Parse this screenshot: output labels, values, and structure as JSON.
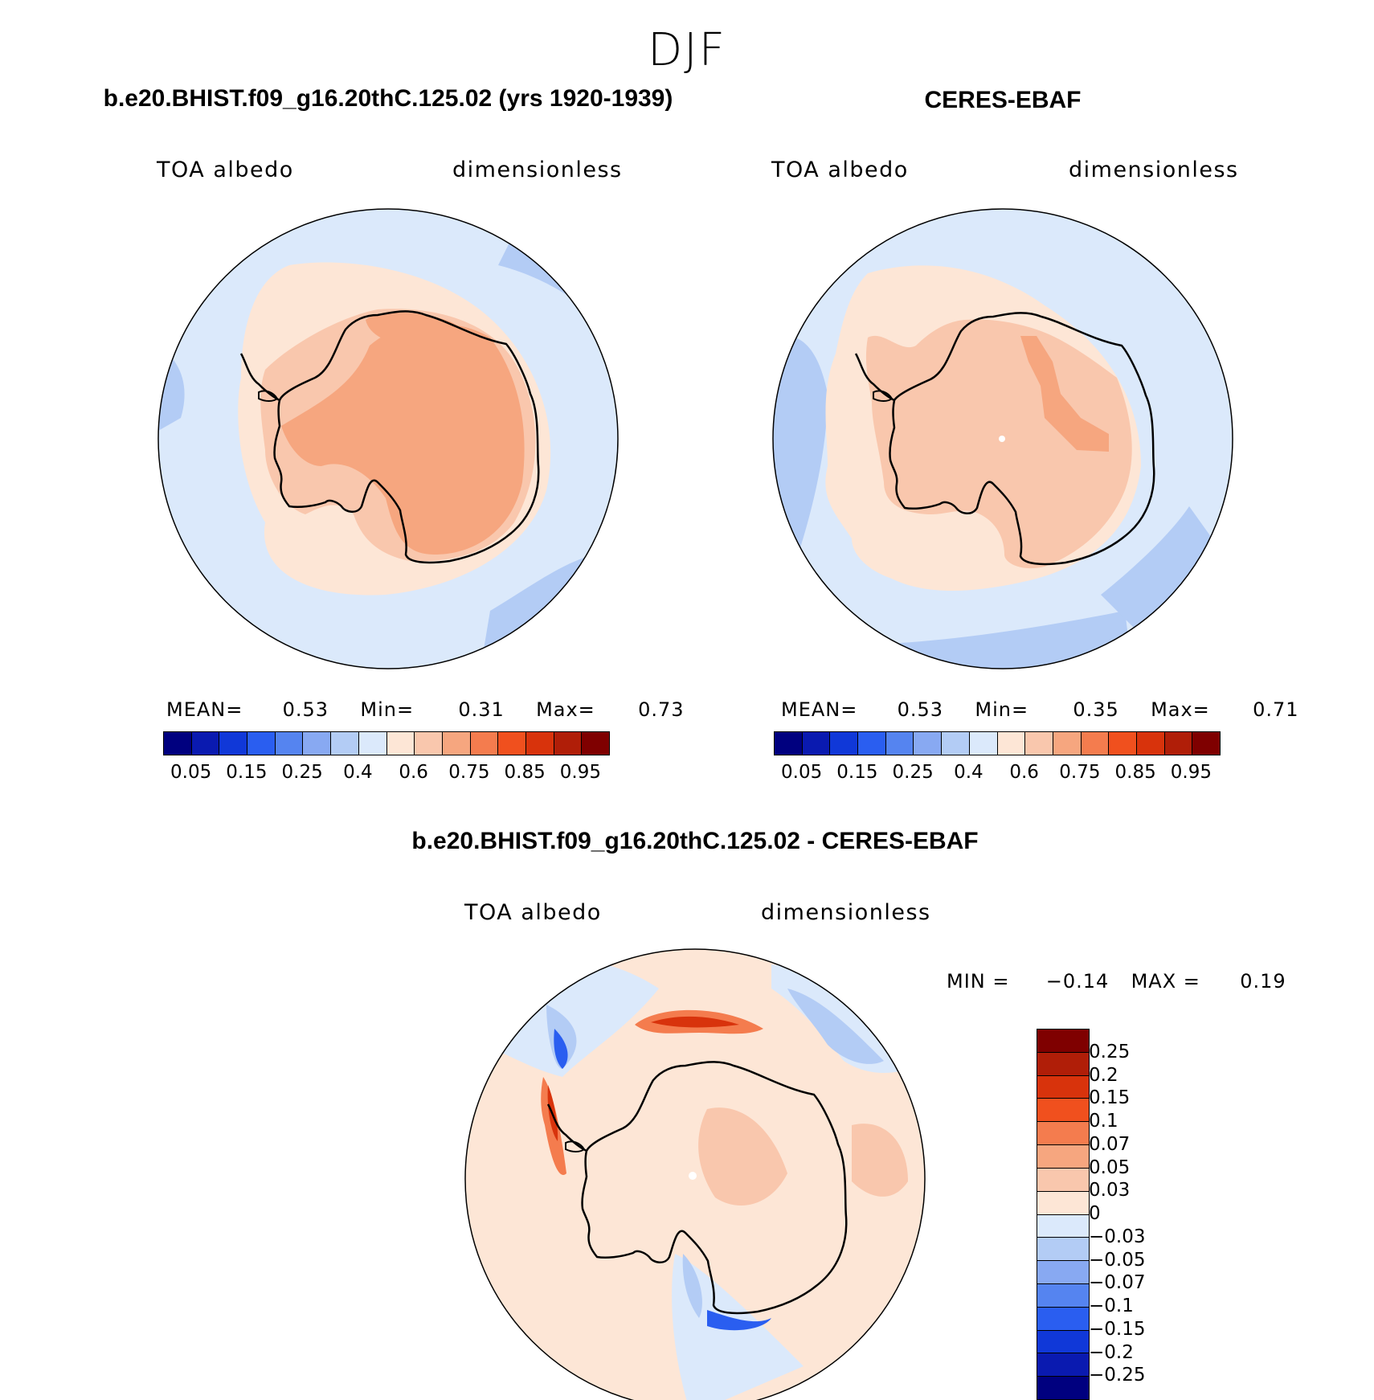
{
  "title": "DJF",
  "colors": {
    "deep_blue": "#0a0a8c",
    "light_blue": "#dbe9fb",
    "mid_blue": "#b3ccf5",
    "peach_light": "#fde6d6",
    "peach": "#f9c7ad",
    "salmon": "#f6a67f",
    "red": "#e0331a"
  },
  "panels": {
    "left": {
      "title": "b.e20.BHIST.f09_g16.20thC.125.02 (yrs 1920-1939)",
      "var_label": "TOA albedo",
      "units": "dimensionless",
      "stats": {
        "mean_label": "MEAN=",
        "mean": "0.53",
        "min_label": "Min=",
        "min": "0.31",
        "max_label": "Max=",
        "max": "0.73"
      }
    },
    "right": {
      "title": "CERES-EBAF",
      "var_label": "TOA albedo",
      "units": "dimensionless",
      "stats": {
        "mean_label": "MEAN=",
        "mean": "0.53",
        "min_label": "Min=",
        "min": "0.35",
        "max_label": "Max=",
        "max": "0.71"
      }
    },
    "diff": {
      "title": "b.e20.BHIST.f09_g16.20thC.125.02 - CERES-EBAF",
      "var_label": "TOA albedo",
      "units": "dimensionless",
      "stats": {
        "min_label": "MIN =",
        "min": "−0.14",
        "max_label": "MAX =",
        "max": "0.19"
      }
    }
  },
  "colorbar_abs": {
    "colors": [
      "#00007f",
      "#0a1ab0",
      "#1038d8",
      "#2a5ef0",
      "#5584f0",
      "#88a9f2",
      "#b3ccf5",
      "#dbe9fb",
      "#fde6d6",
      "#f9c7ad",
      "#f6a67f",
      "#f47c4e",
      "#f0501e",
      "#d8330c",
      "#b01e08",
      "#7f0000"
    ],
    "labels": [
      "0.05",
      "0.15",
      "0.25",
      "0.4",
      "0.6",
      "0.75",
      "0.85",
      "0.95"
    ]
  },
  "colorbar_diff": {
    "colors": [
      "#7f0000",
      "#b01e08",
      "#d8330c",
      "#f0501e",
      "#f47c4e",
      "#f6a67f",
      "#f9c7ad",
      "#fde6d6",
      "#dbe9fb",
      "#b3ccf5",
      "#88a9f2",
      "#5584f0",
      "#2a5ef0",
      "#1038d8",
      "#0a1ab0",
      "#00007f"
    ],
    "labels": [
      "0.25",
      "0.2",
      "0.15",
      "0.1",
      "0.07",
      "0.05",
      "0.03",
      "0",
      "−0.03",
      "−0.05",
      "−0.07",
      "−0.1",
      "−0.15",
      "−0.2",
      "−0.25"
    ]
  }
}
